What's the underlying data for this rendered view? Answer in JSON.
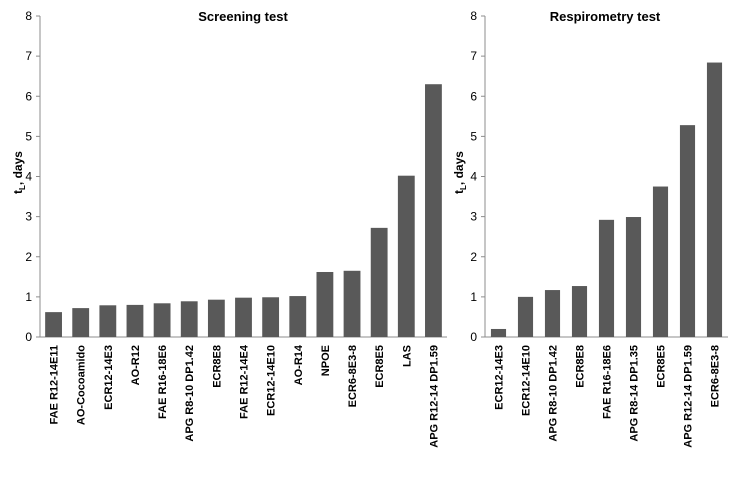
{
  "chart_data": [
    {
      "type": "bar",
      "title": "Screening test",
      "xlabel": "",
      "ylabel": "t",
      "ylabel_sub": "L",
      "ylabel_suffix": ", days",
      "ylim": [
        0,
        8
      ],
      "yticks": [
        "0",
        "1",
        "2",
        "3",
        "4",
        "5",
        "6",
        "7",
        "8"
      ],
      "grid": false,
      "legend": "none",
      "bar_color": "#595959",
      "categories": [
        "FAE R12-14E11",
        "AO-Cocoamido",
        "ECR12-14E3",
        "AO-R12",
        "FAE R16-18E6",
        "APG R8-10 DP1.42",
        "ECR8E8",
        "FAE R12-14E4",
        "ECR12-14E10",
        "AO-R14",
        "NPOE",
        "ECR6-8E3-8",
        "ECR8E5",
        "LAS",
        "APG R12-14 DP1.59"
      ],
      "values": [
        0.62,
        0.72,
        0.79,
        0.8,
        0.84,
        0.89,
        0.93,
        0.98,
        0.99,
        1.02,
        1.62,
        1.65,
        2.72,
        4.02,
        6.3
      ]
    },
    {
      "type": "bar",
      "title": "Respirometry test",
      "xlabel": "",
      "ylabel": "t",
      "ylabel_sub": "L",
      "ylabel_suffix": ", days",
      "ylim": [
        0,
        8
      ],
      "yticks": [
        "0",
        "1",
        "2",
        "3",
        "4",
        "5",
        "6",
        "7",
        "8"
      ],
      "grid": false,
      "legend": "none",
      "bar_color": "#595959",
      "categories": [
        "ECR12-14E3",
        "ECR12-14E10",
        "APG R8-10 DP1.42",
        "ECR8E8",
        "FAE R16-18E6",
        "APG R8-14 DP1.35",
        "ECR8E5",
        "APG R12-14 DP1.59",
        "ECR6-8E3-8"
      ],
      "values": [
        0.2,
        1.0,
        1.17,
        1.27,
        2.92,
        2.99,
        3.75,
        5.28,
        6.84
      ]
    }
  ]
}
